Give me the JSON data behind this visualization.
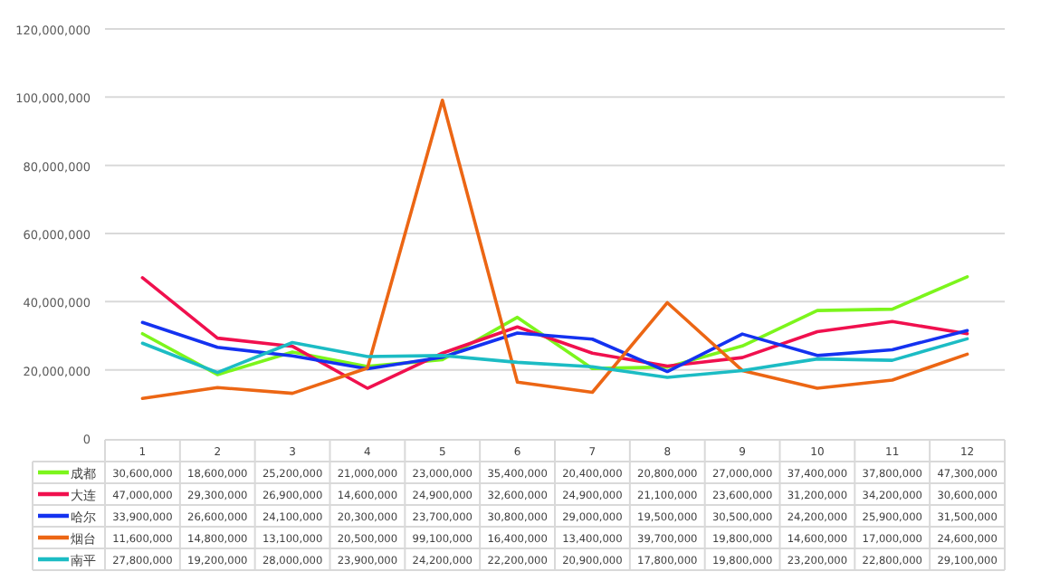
{
  "chart_data": {
    "type": "line",
    "categories": [
      "1",
      "2",
      "3",
      "4",
      "5",
      "6",
      "7",
      "8",
      "9",
      "10",
      "11",
      "12"
    ],
    "series": [
      {
        "name": "成都",
        "color": "#7cf51c",
        "values": [
          30600000,
          18600000,
          25200000,
          21000000,
          23000000,
          35400000,
          20400000,
          20800000,
          27000000,
          37400000,
          37800000,
          47300000
        ],
        "value_labels": [
          "30,600,000",
          "18,600,000",
          "25,200,000",
          "21,000,000",
          "23,000,000",
          "35,400,000",
          "20,400,000",
          "20,800,000",
          "27,000,000",
          "37,400,000",
          "37,800,000",
          "47,300,000"
        ]
      },
      {
        "name": "大连",
        "color": "#f0104e",
        "values": [
          47000000,
          29300000,
          26900000,
          14600000,
          24900000,
          32600000,
          24900000,
          21100000,
          23600000,
          31200000,
          34200000,
          30600000
        ],
        "value_labels": [
          "47,000,000",
          "29,300,000",
          "26,900,000",
          "14,600,000",
          "24,900,000",
          "32,600,000",
          "24,900,000",
          "21,100,000",
          "23,600,000",
          "31,200,000",
          "34,200,000",
          "30,600,000"
        ]
      },
      {
        "name": "哈尔",
        "color": "#1432f0",
        "values": [
          33900000,
          26600000,
          24100000,
          20300000,
          23700000,
          30800000,
          29000000,
          19500000,
          30500000,
          24200000,
          25900000,
          31500000
        ],
        "value_labels": [
          "33,900,000",
          "26,600,000",
          "24,100,000",
          "20,300,000",
          "23,700,000",
          "30,800,000",
          "29,000,000",
          "19,500,000",
          "30,500,000",
          "24,200,000",
          "25,900,000",
          "31,500,000"
        ]
      },
      {
        "name": "烟台",
        "color": "#ec6614",
        "values": [
          11600000,
          14800000,
          13100000,
          20500000,
          99100000,
          16400000,
          13400000,
          39700000,
          19800000,
          14600000,
          17000000,
          24600000
        ],
        "value_labels": [
          "11,600,000",
          "14,800,000",
          "13,100,000",
          "20,500,000",
          "99,100,000",
          "16,400,000",
          "13,400,000",
          "39,700,000",
          "19,800,000",
          "14,600,000",
          "17,000,000",
          "24,600,000"
        ]
      },
      {
        "name": "南平",
        "color": "#1cbcc4",
        "values": [
          27800000,
          19200000,
          28000000,
          23900000,
          24200000,
          22200000,
          20900000,
          17800000,
          19800000,
          23200000,
          22800000,
          29100000
        ],
        "value_labels": [
          "27,800,000",
          "19,200,000",
          "28,000,000",
          "23,900,000",
          "24,200,000",
          "22,200,000",
          "20,900,000",
          "17,800,000",
          "19,800,000",
          "23,200,000",
          "22,800,000",
          "29,100,000"
        ]
      }
    ],
    "ylim": [
      0,
      120000000
    ],
    "yticks": [
      {
        "value": 0,
        "label": "0"
      },
      {
        "value": 20000000,
        "label": "20,000,000"
      },
      {
        "value": 40000000,
        "label": "40,000,000"
      },
      {
        "value": 60000000,
        "label": "60,000,000"
      },
      {
        "value": 80000000,
        "label": "80,000,000"
      },
      {
        "value": 100000000,
        "label": "100,000,000"
      },
      {
        "value": 120000000,
        "label": "120,000,000"
      }
    ],
    "grid": "y",
    "legend": "bottom"
  }
}
